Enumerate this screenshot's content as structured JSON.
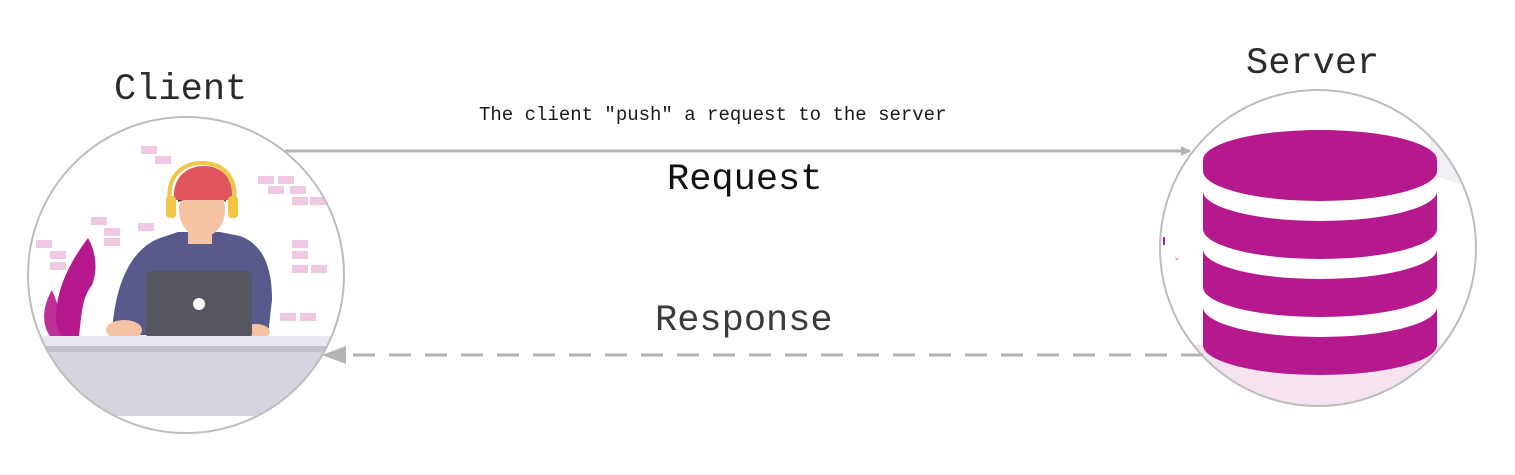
{
  "client": {
    "title": "Client",
    "icon": "person-with-laptop-icon"
  },
  "server": {
    "title": "Server",
    "icon": "database-icon"
  },
  "request": {
    "caption": "The client \"push\" a request to the server",
    "label": "Request"
  },
  "response": {
    "label": "Response"
  },
  "colors": {
    "accent": "#b5198d",
    "arrow": "#b3b3b3",
    "circle_border": "#bdbdbd",
    "shirt": "#595a8c",
    "laptop": "#55565f",
    "cap": "#e0555c",
    "headphones": "#f4c542",
    "desk": "#d6d4df",
    "brick": "#efc8e4"
  }
}
